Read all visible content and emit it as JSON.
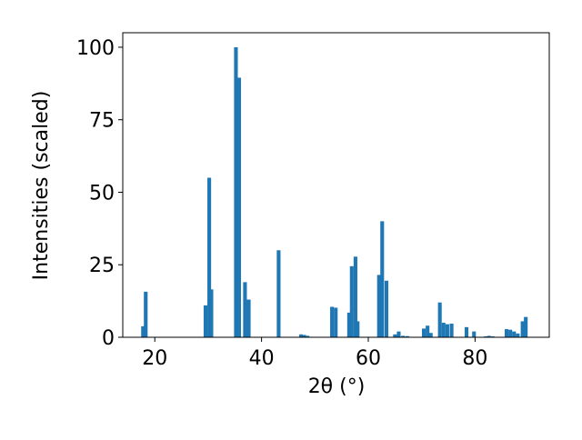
{
  "chart_data": {
    "type": "bar",
    "x_label": "2θ (°)",
    "y_label": "Intensities (scaled)",
    "x": [
      17.8,
      18.3,
      29.5,
      30.2,
      30.6,
      35.2,
      35.8,
      36.9,
      37.6,
      43.2,
      47.4,
      48.0,
      48.6,
      53.2,
      53.9,
      56.4,
      56.9,
      57.6,
      58.0,
      62.0,
      62.6,
      63.4,
      65.0,
      65.7,
      66.5,
      67.3,
      70.4,
      71.1,
      71.7,
      73.4,
      74.1,
      74.8,
      75.6,
      78.4,
      79.8,
      82.0,
      82.6,
      83.3,
      85.9,
      86.6,
      87.3,
      88.0,
      88.9,
      89.5
    ],
    "values": [
      3.8,
      15.7,
      11,
      55,
      16.5,
      100,
      89.5,
      19,
      13,
      30,
      1,
      0.8,
      0.5,
      10.5,
      10.2,
      8.5,
      24.5,
      27.8,
      5.5,
      21.5,
      40,
      19.5,
      1,
      2,
      0.5,
      0.4,
      3,
      4,
      1.5,
      12,
      5,
      4.5,
      4.7,
      3.5,
      2,
      0.3,
      0.5,
      0.3,
      2.8,
      2.6,
      2,
      1.3,
      5.5,
      7
    ],
    "color": "#1f77b4",
    "xlim": [
      14,
      93.9
    ],
    "xticks": [
      20,
      40,
      60,
      80
    ],
    "ylim": [
      0,
      105
    ],
    "yticks": [
      0,
      25,
      50,
      75,
      100
    ]
  }
}
